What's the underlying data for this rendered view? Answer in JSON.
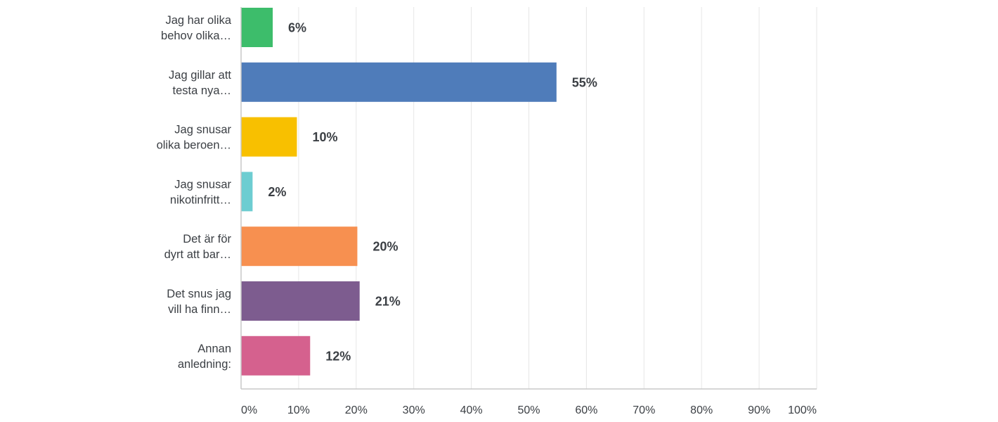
{
  "chart_data": {
    "type": "bar",
    "orientation": "horizontal",
    "title": "",
    "xlabel": "",
    "ylabel": "",
    "xlim": [
      0,
      100
    ],
    "grid": true,
    "categories": [
      [
        "Jag har olika",
        "behov olika…"
      ],
      [
        "Jag gillar att",
        "testa nya…"
      ],
      [
        "Jag snusar",
        "olika beroen…"
      ],
      [
        "Jag snusar",
        "nikotinfritt…"
      ],
      [
        "Det är för",
        "dyrt att bar…"
      ],
      [
        "Det snus jag",
        "vill ha finn…"
      ],
      [
        "Annan",
        "anledning:"
      ]
    ],
    "values": [
      5.5,
      54.8,
      9.7,
      2.0,
      20.2,
      20.6,
      12.0
    ],
    "value_labels": [
      "6%",
      "55%",
      "10%",
      "2%",
      "20%",
      "21%",
      "12%"
    ],
    "colors": [
      "#3dbd6b",
      "#4f7cba",
      "#f8c000",
      "#6dcdd1",
      "#f79050",
      "#7d5c8f",
      "#d5618e"
    ],
    "ticks": [
      0,
      10,
      20,
      30,
      40,
      50,
      60,
      70,
      80,
      90,
      100
    ],
    "tick_labels": [
      "0%",
      "10%",
      "20%",
      "30%",
      "40%",
      "50%",
      "60%",
      "70%",
      "80%",
      "90%",
      "100%"
    ]
  }
}
